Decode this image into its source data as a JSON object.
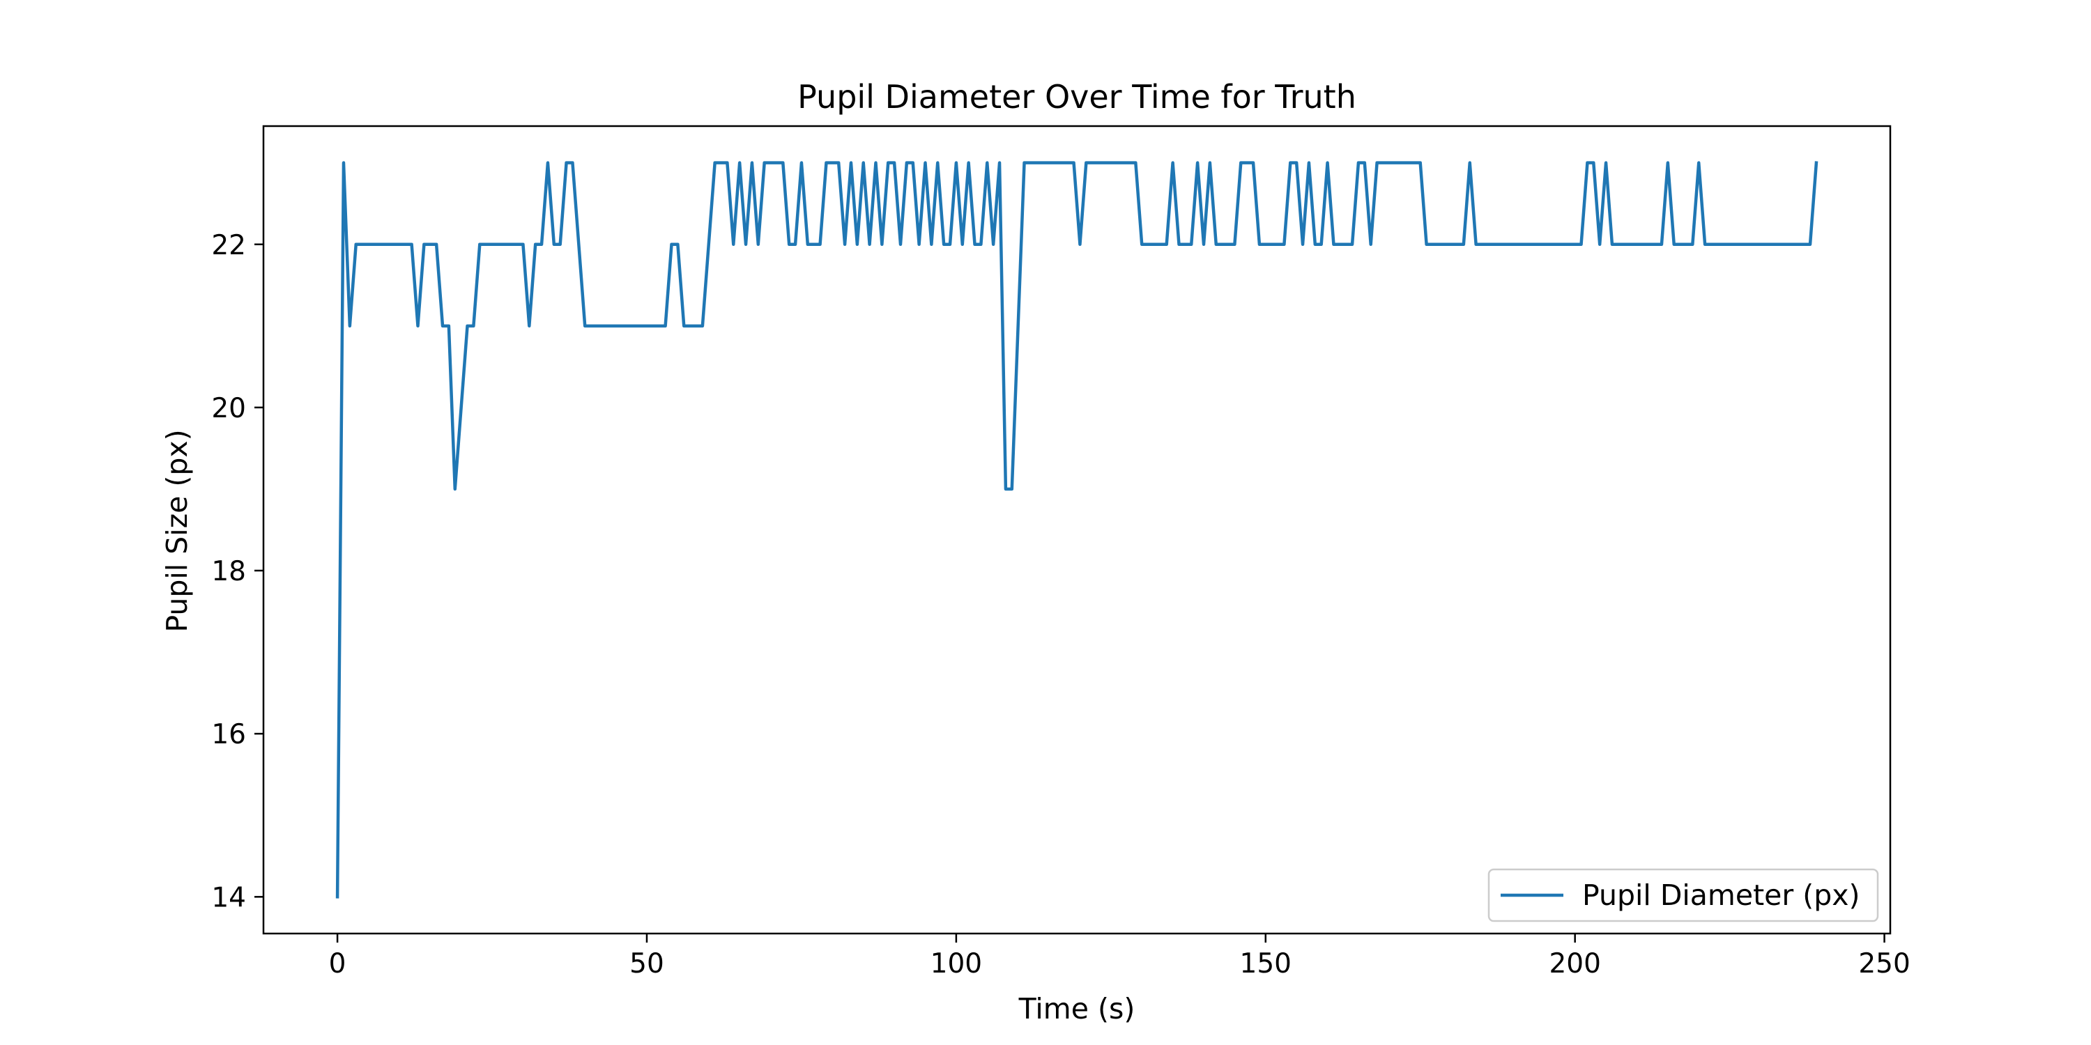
{
  "chart_data": {
    "type": "line",
    "title": "Pupil Diameter Over Time for Truth",
    "xlabel": "Time (s)",
    "ylabel": "Pupil Size (px)",
    "xlim": [
      -11.95,
      250.95
    ],
    "ylim": [
      13.55,
      23.45
    ],
    "xticks": [
      0,
      50,
      100,
      150,
      200,
      250
    ],
    "yticks": [
      14,
      16,
      18,
      20,
      22
    ],
    "xtick_labels": [
      "0",
      "50",
      "100",
      "150",
      "200",
      "250"
    ],
    "ytick_labels": [
      "14",
      "16",
      "18",
      "20",
      "22"
    ],
    "grid": false,
    "legend_position": "lower right",
    "series": [
      {
        "name": "Pupil Diameter (px)",
        "color": "#1f77b4",
        "x": [
          0,
          1,
          2,
          3,
          4,
          5,
          6,
          7,
          8,
          9,
          10,
          11,
          12,
          13,
          14,
          15,
          16,
          17,
          18,
          19,
          20,
          21,
          22,
          23,
          24,
          25,
          26,
          27,
          28,
          29,
          30,
          31,
          32,
          33,
          34,
          35,
          36,
          37,
          38,
          39,
          40,
          41,
          42,
          43,
          44,
          45,
          46,
          47,
          48,
          49,
          50,
          51,
          52,
          53,
          54,
          55,
          56,
          57,
          58,
          59,
          60,
          61,
          62,
          63,
          64,
          65,
          66,
          67,
          68,
          69,
          70,
          71,
          72,
          73,
          74,
          75,
          76,
          77,
          78,
          79,
          80,
          81,
          82,
          83,
          84,
          85,
          86,
          87,
          88,
          89,
          90,
          91,
          92,
          93,
          94,
          95,
          96,
          97,
          98,
          99,
          100,
          101,
          102,
          103,
          104,
          105,
          106,
          107,
          108,
          109,
          110,
          111,
          112,
          113,
          114,
          115,
          116,
          117,
          118,
          119,
          120,
          121,
          122,
          123,
          124,
          125,
          126,
          127,
          128,
          129,
          130,
          131,
          132,
          133,
          134,
          135,
          136,
          137,
          138,
          139,
          140,
          141,
          142,
          143,
          144,
          145,
          146,
          147,
          148,
          149,
          150,
          151,
          152,
          153,
          154,
          155,
          156,
          157,
          158,
          159,
          160,
          161,
          162,
          163,
          164,
          165,
          166,
          167,
          168,
          169,
          170,
          171,
          172,
          173,
          174,
          175,
          176,
          177,
          178,
          179,
          180,
          181,
          182,
          183,
          184,
          185,
          186,
          187,
          188,
          189,
          190,
          191,
          192,
          193,
          194,
          195,
          196,
          197,
          198,
          199,
          200,
          201,
          202,
          203,
          204,
          205,
          206,
          207,
          208,
          209,
          210,
          211,
          212,
          213,
          214,
          215,
          216,
          217,
          218,
          219,
          220,
          221,
          222,
          223,
          224,
          225,
          226,
          227,
          228,
          229,
          230,
          231,
          232,
          233,
          234,
          235,
          236,
          237,
          238,
          239
        ],
        "y": [
          14,
          23,
          21,
          22,
          22,
          22,
          22,
          22,
          22,
          22,
          22,
          22,
          22,
          21,
          22,
          22,
          22,
          21,
          21,
          19,
          20,
          21,
          21,
          22,
          22,
          22,
          22,
          22,
          22,
          22,
          22,
          21,
          22,
          22,
          23,
          22,
          22,
          23,
          23,
          22,
          21,
          21,
          21,
          21,
          21,
          21,
          21,
          21,
          21,
          21,
          21,
          21,
          21,
          21,
          22,
          22,
          21,
          21,
          21,
          21,
          22,
          23,
          23,
          23,
          22,
          23,
          22,
          23,
          22,
          23,
          23,
          23,
          23,
          22,
          22,
          23,
          22,
          22,
          22,
          23,
          23,
          23,
          22,
          23,
          22,
          23,
          22,
          23,
          22,
          23,
          23,
          22,
          23,
          23,
          22,
          23,
          22,
          23,
          22,
          22,
          23,
          22,
          23,
          22,
          22,
          23,
          22,
          23,
          19,
          19,
          21,
          23,
          23,
          23,
          23,
          23,
          23,
          23,
          23,
          23,
          22,
          23,
          23,
          23,
          23,
          23,
          23,
          23,
          23,
          23,
          22,
          22,
          22,
          22,
          22,
          23,
          22,
          22,
          22,
          23,
          22,
          23,
          22,
          22,
          22,
          22,
          23,
          23,
          23,
          22,
          22,
          22,
          22,
          22,
          23,
          23,
          22,
          23,
          22,
          22,
          23,
          22,
          22,
          22,
          22,
          23,
          23,
          22,
          23,
          23,
          23,
          23,
          23,
          23,
          23,
          23,
          22,
          22,
          22,
          22,
          22,
          22,
          22,
          23,
          22,
          22,
          22,
          22,
          22,
          22,
          22,
          22,
          22,
          22,
          22,
          22,
          22,
          22,
          22,
          22,
          22,
          22,
          23,
          23,
          22,
          23,
          22,
          22,
          22,
          22,
          22,
          22,
          22,
          22,
          22,
          23,
          22,
          22,
          22,
          22,
          23,
          22,
          22,
          22,
          22,
          22,
          22,
          22,
          22,
          22,
          22,
          22,
          22,
          22,
          22,
          22,
          22,
          22,
          22,
          23
        ]
      }
    ]
  }
}
